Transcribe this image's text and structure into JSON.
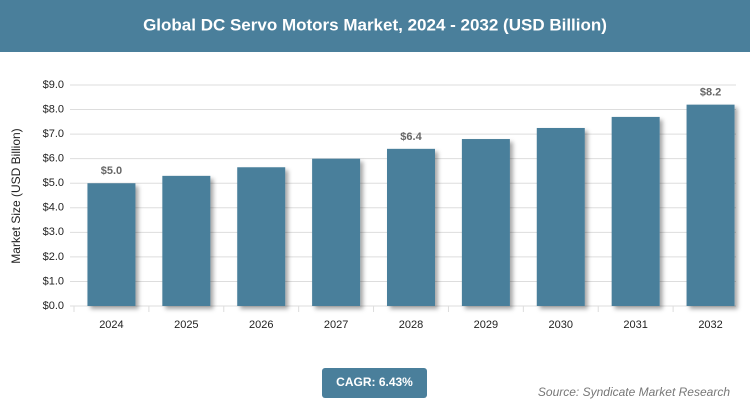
{
  "chart_data": {
    "type": "bar",
    "title": "Global DC Servo Motors Market, 2024 - 2032 (USD Billion)",
    "y_label": "Market Size (USD Billion)",
    "categories": [
      "2024",
      "2025",
      "2026",
      "2027",
      "2028",
      "2029",
      "2030",
      "2031",
      "2032"
    ],
    "values": [
      5.0,
      5.3,
      5.65,
      6.0,
      6.4,
      6.8,
      7.25,
      7.7,
      8.2
    ],
    "value_labels": [
      "$5.0",
      null,
      null,
      null,
      "$6.4",
      null,
      null,
      null,
      "$8.2"
    ],
    "color": "#4a7f9b",
    "ylim": [
      0,
      9
    ],
    "yticks": [
      {
        "value": 0,
        "label": "$0.0"
      },
      {
        "value": 1,
        "label": "$1.0"
      },
      {
        "value": 2,
        "label": "$2.0"
      },
      {
        "value": 3,
        "label": "$3.0"
      },
      {
        "value": 4,
        "label": "$4.0"
      },
      {
        "value": 5,
        "label": "$5.0"
      },
      {
        "value": 6,
        "label": "$6.0"
      },
      {
        "value": 7,
        "label": "$7.0"
      },
      {
        "value": 8,
        "label": "$8.0"
      },
      {
        "value": 9,
        "label": "$9.0"
      }
    ],
    "grid": true,
    "cagr": "CAGR: 6.43%",
    "source": "Source: Syndicate Market Research"
  }
}
